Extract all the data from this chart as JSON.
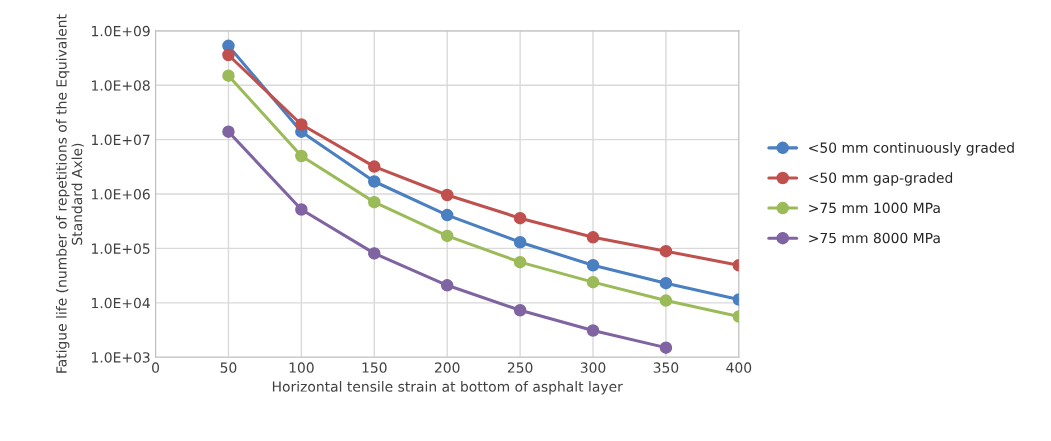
{
  "chart_data": {
    "type": "line",
    "xlabel": "Horizontal tensile strain at bottom of asphalt layer",
    "ylabel": "Fatigue life (number of repetitions of the Equivalent Standard Axle)",
    "x": [
      50,
      100,
      150,
      200,
      250,
      300,
      350,
      400
    ],
    "series": [
      {
        "name": "<50 mm continuously graded",
        "color": "#4a7fc1",
        "values": [
          530000000,
          14000000,
          1700000,
          410000,
          130000,
          49000,
          23000,
          11500
        ]
      },
      {
        "name": "<50 mm gap-graded",
        "color": "#c0504d",
        "values": [
          360000000,
          19000000,
          3200000,
          960000,
          360000,
          160000,
          89000,
          49000
        ]
      },
      {
        "name": ">75 mm 1000 MPa",
        "color": "#9bbb59",
        "values": [
          150000000,
          5000000,
          710000,
          170000,
          56000,
          24000,
          11000,
          5600
        ]
      },
      {
        "name": ">75 mm 8000 MPa",
        "color": "#8064a2",
        "values": [
          14000000,
          520000,
          81000,
          21000,
          7300,
          3100,
          1500,
          null
        ]
      }
    ],
    "log": "y",
    "xlim": [
      0,
      400
    ],
    "xticks": [
      0,
      50,
      100,
      150,
      200,
      250,
      300,
      350,
      400
    ],
    "ylim": [
      1000,
      1000000000
    ],
    "yticks": [
      {
        "value": 1000,
        "label": "1.0E+03"
      },
      {
        "value": 10000,
        "label": "1.0E+04"
      },
      {
        "value": 100000,
        "label": "1.0E+05"
      },
      {
        "value": 1000000,
        "label": "1.0E+06"
      },
      {
        "value": 10000000,
        "label": "1.0E+07"
      },
      {
        "value": 100000000,
        "label": "1.0E+08"
      },
      {
        "value": 1000000000,
        "label": "1.0E+09"
      }
    ],
    "grid": true,
    "legend": "right",
    "marker": "circle",
    "line_style": "solid"
  }
}
